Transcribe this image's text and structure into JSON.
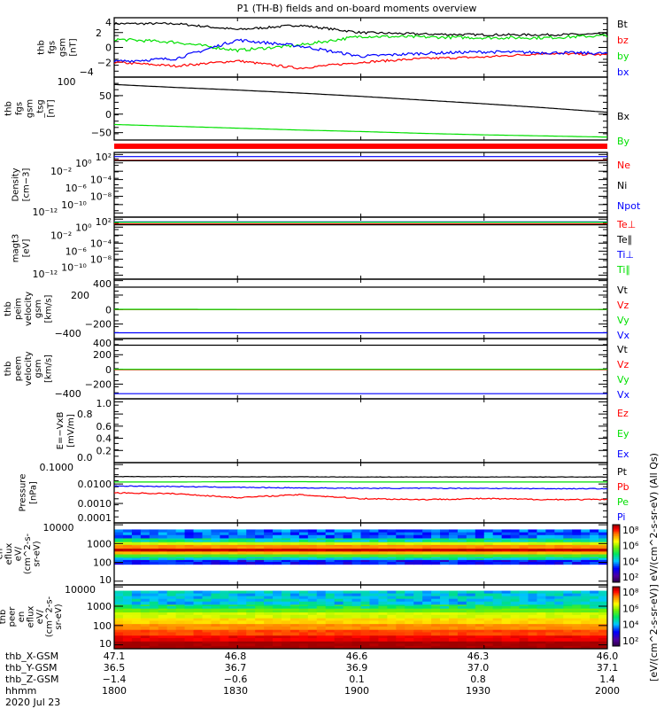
{
  "title": "P1 (TH-B) fields and on-board moments overview",
  "chart_data": {
    "type": "line",
    "time_axis": {
      "start_hhmm": "1800",
      "end_hhmm": "2000",
      "minutes": 120,
      "sample_minutes": [
        0,
        15,
        30,
        45,
        60,
        75,
        90,
        105,
        120
      ]
    },
    "panels": [
      {
        "id": "fgs_gsm",
        "ylabel": [
          "thb",
          "fgs",
          "gsm",
          "[nT]"
        ],
        "scale": "linear",
        "ylim": [
          -4,
          4
        ],
        "ticks": [
          {
            "v": 4,
            "label": "4"
          },
          {
            "v": 2,
            "label": "2"
          },
          {
            "v": 0,
            "label": "0"
          },
          {
            "v": -2,
            "label": "−2"
          },
          {
            "v": -4,
            "label": "−4"
          }
        ],
        "series": [
          {
            "name": "Bt",
            "color": "#000000",
            "values": [
              3.2,
              3.2,
              2.4,
              3.0,
              2.0,
              1.8,
              1.7,
              1.7,
              1.8
            ],
            "noise": 0.15
          },
          {
            "name": "bz",
            "color": "#ff0000",
            "values": [
              -2.0,
              -2.5,
              -1.8,
              -2.8,
              -2.0,
              -1.5,
              -1.3,
              -0.8,
              -1.0
            ],
            "noise": 0.15
          },
          {
            "name": "by",
            "color": "#00e000",
            "values": [
              1.1,
              0.7,
              -0.4,
              0.3,
              1.5,
              1.4,
              1.3,
              1.3,
              1.6
            ],
            "noise": 0.2
          },
          {
            "name": "bx",
            "color": "#0000ff",
            "values": [
              -1.9,
              -1.5,
              1.0,
              0.2,
              -1.2,
              -0.8,
              -0.6,
              -0.7,
              -0.8
            ],
            "noise": 0.2
          }
        ]
      },
      {
        "id": "fgs_gsm_tsg",
        "ylabel": [
          "thb",
          "fgs",
          "gsm",
          "_tsg",
          "[nT]"
        ],
        "scale": "linear",
        "ylim": [
          -70,
          100
        ],
        "ticks": [
          {
            "v": 100,
            "label": "100"
          },
          {
            "v": 50,
            "label": "50"
          },
          {
            "v": 0,
            "label": "0"
          },
          {
            "v": -50,
            "label": "−50"
          }
        ],
        "series": [
          {
            "name": "Bx",
            "color": "#000000",
            "values": [
              80,
              72,
              65,
              57,
              48,
              38,
              28,
              17,
              5
            ],
            "noise": 0
          },
          {
            "name": "By",
            "color": "#00e000",
            "values": [
              -28,
              -33,
              -38,
              -43,
              -47,
              -52,
              -56,
              -59,
              -62
            ],
            "noise": 0
          }
        ]
      },
      {
        "id": "density",
        "ylabel": [
          "Density",
          "[cm−3]"
        ],
        "scale": "log",
        "ylim": [
          -13,
          2.5
        ],
        "ticks": [
          {
            "v": 2,
            "label": "10²"
          },
          {
            "v": 0,
            "label": "10⁰"
          },
          {
            "v": -2,
            "label": "10⁻²"
          },
          {
            "v": -4,
            "label": "10⁻⁴"
          },
          {
            "v": -6,
            "label": "10⁻⁶"
          },
          {
            "v": -8,
            "label": "10⁻⁸"
          },
          {
            "v": -10,
            "label": "10⁻¹⁰"
          },
          {
            "v": -12,
            "label": "10⁻¹²"
          }
        ],
        "series": [
          {
            "name": "Ne",
            "color": "#ff0000",
            "values": [
              0.6,
              0.6,
              0.6,
              0.6,
              0.6,
              0.6,
              0.6,
              0.6,
              0.6
            ],
            "noise": 0
          },
          {
            "name": "Ni",
            "color": "#000000",
            "values": [
              0.5,
              0.5,
              0.5,
              0.5,
              0.5,
              0.5,
              0.5,
              0.5,
              0.5
            ],
            "noise": 0
          },
          {
            "name": "Npot",
            "color": "#0000ff",
            "values": [
              1.5,
              1.5,
              1.5,
              1.5,
              1.5,
              1.5,
              1.5,
              1.5,
              1.5
            ],
            "noise": 0
          }
        ]
      },
      {
        "id": "magt3",
        "ylabel": [
          "magt3",
          "[eV]"
        ],
        "scale": "log",
        "ylim": [
          -13,
          2.5
        ],
        "ticks": [
          {
            "v": 2,
            "label": "10²"
          },
          {
            "v": 0,
            "label": "10⁰"
          },
          {
            "v": -2,
            "label": "10⁻²"
          },
          {
            "v": -4,
            "label": "10⁻⁴"
          },
          {
            "v": -6,
            "label": "10⁻⁶"
          },
          {
            "v": -8,
            "label": "10⁻⁸"
          },
          {
            "v": -10,
            "label": "10⁻¹⁰"
          },
          {
            "v": -12,
            "label": "10⁻¹²"
          }
        ],
        "series": [
          {
            "name": "Te⊥",
            "color": "#ff0000",
            "values": [
              0.8,
              0.8,
              0.8,
              0.8,
              0.8,
              0.8,
              0.8,
              0.8,
              0.8
            ],
            "noise": 0
          },
          {
            "name": "Te∥",
            "color": "#000000",
            "values": [
              0.6,
              0.6,
              0.6,
              0.6,
              0.6,
              0.6,
              0.6,
              0.6,
              0.6
            ],
            "noise": 0
          },
          {
            "name": "Ti⊥",
            "color": "#0000ff",
            "values": [
              1.3,
              1.3,
              1.3,
              1.3,
              1.3,
              1.3,
              1.3,
              1.3,
              1.3
            ],
            "noise": 0
          },
          {
            "name": "Ti∥",
            "color": "#00e000",
            "values": [
              1.2,
              1.2,
              1.2,
              1.2,
              1.2,
              1.2,
              1.2,
              1.2,
              1.2
            ],
            "noise": 0
          }
        ]
      },
      {
        "id": "peim_velocity",
        "ylabel": [
          "thb",
          "peim",
          "velocity",
          "gsm",
          "[km/s]"
        ],
        "scale": "linear",
        "ylim": [
          -400,
          420
        ],
        "ticks": [
          {
            "v": 400,
            "label": "400"
          },
          {
            "v": 200,
            "label": "200"
          },
          {
            "v": 0,
            "label": "0"
          },
          {
            "v": -200,
            "label": "−200"
          },
          {
            "v": -400,
            "label": "−400"
          }
        ],
        "series": [
          {
            "name": "Vt",
            "color": "#000000",
            "values": [
              310,
              310,
              310,
              310,
              310,
              310,
              310,
              310,
              310
            ],
            "noise": 0
          },
          {
            "name": "Vz",
            "color": "#ff0000",
            "values": [
              0,
              0,
              0,
              0,
              0,
              0,
              0,
              0,
              0
            ],
            "noise": 0
          },
          {
            "name": "Vy",
            "color": "#00e000",
            "values": [
              4,
              4,
              2,
              2,
              2,
              2,
              2,
              2,
              2
            ],
            "noise": 0
          },
          {
            "name": "Vx",
            "color": "#0000ff",
            "values": [
              -320,
              -320,
              -320,
              -320,
              -320,
              -320,
              -320,
              -320,
              -320
            ],
            "noise": 0
          }
        ]
      },
      {
        "id": "peem_velocity",
        "ylabel": [
          "thb",
          "peem",
          "velocity",
          "gsm",
          "[km/s]"
        ],
        "scale": "linear",
        "ylim": [
          -400,
          420
        ],
        "ticks": [
          {
            "v": 400,
            "label": "400"
          },
          {
            "v": 200,
            "label": "200"
          },
          {
            "v": 0,
            "label": "0"
          },
          {
            "v": -200,
            "label": "−200"
          },
          {
            "v": -400,
            "label": "−400"
          }
        ],
        "series": [
          {
            "name": "Vt",
            "color": "#000000",
            "values": [
              330,
              330,
              330,
              330,
              330,
              330,
              330,
              330,
              330
            ],
            "noise": 0
          },
          {
            "name": "Vz",
            "color": "#ff0000",
            "values": [
              -5,
              -5,
              -5,
              -5,
              -5,
              -5,
              -5,
              -5,
              -5
            ],
            "noise": 0
          },
          {
            "name": "Vy",
            "color": "#00e000",
            "values": [
              2,
              2,
              2,
              2,
              2,
              2,
              2,
              2,
              2
            ],
            "noise": 0
          },
          {
            "name": "Vx",
            "color": "#0000ff",
            "values": [
              -330,
              -330,
              -330,
              -330,
              -330,
              -330,
              -330,
              -330,
              -330
            ],
            "noise": 0
          }
        ]
      },
      {
        "id": "efield",
        "ylabel": [
          "E=−VxB",
          "[mV/m]"
        ],
        "scale": "linear",
        "ylim": [
          0,
          1.05
        ],
        "ticks": [
          {
            "v": 1,
            "label": "1.0"
          },
          {
            "v": 0.8,
            "label": "0.8"
          },
          {
            "v": 0.6,
            "label": "0.6"
          },
          {
            "v": 0.4,
            "label": "0.4"
          },
          {
            "v": 0.2,
            "label": "0.2"
          },
          {
            "v": 0,
            "label": "0.0"
          }
        ],
        "series": [
          {
            "name": "Ez",
            "color": "#ff0000",
            "values": [],
            "noise": 0
          },
          {
            "name": "Ey",
            "color": "#00e000",
            "values": [],
            "noise": 0
          },
          {
            "name": "Ex",
            "color": "#0000ff",
            "values": [],
            "noise": 0
          }
        ]
      },
      {
        "id": "pressure",
        "ylabel": [
          "Pressure",
          "[nPa]"
        ],
        "scale": "log",
        "ylim": [
          -4,
          -0.9
        ],
        "ticks": [
          {
            "v": -1,
            "label": "0.1000"
          },
          {
            "v": -2,
            "label": "0.0100"
          },
          {
            "v": -3,
            "label": "0.0010"
          },
          {
            "v": -4,
            "label": "0.0001"
          }
        ],
        "series": [
          {
            "name": "Pt",
            "color": "#000000",
            "values": [
              -1.62,
              -1.62,
              -1.63,
              -1.63,
              -1.64,
              -1.64,
              -1.64,
              -1.64,
              -1.64
            ],
            "noise": 0.01
          },
          {
            "name": "Pb",
            "color": "#ff0000",
            "values": [
              -2.45,
              -2.5,
              -2.7,
              -2.55,
              -2.75,
              -2.8,
              -2.75,
              -2.8,
              -2.8
            ],
            "noise": 0.03
          },
          {
            "name": "Pe",
            "color": "#00e000",
            "values": [
              -1.9,
              -1.9,
              -1.88,
              -1.88,
              -1.9,
              -1.9,
              -1.9,
              -1.9,
              -1.9
            ],
            "noise": 0
          },
          {
            "name": "Pi",
            "color": "#0000ff",
            "values": [
              -2.1,
              -2.13,
              -2.17,
              -2.2,
              -2.22,
              -2.22,
              -2.22,
              -2.24,
              -2.24
            ],
            "noise": 0.02
          }
        ]
      }
    ],
    "spectrograms": [
      {
        "id": "peir",
        "ylabel": [
          "thb",
          "peir",
          "en",
          "eflux",
          "eV/",
          "(cm^2-s-",
          "sr-eV)"
        ],
        "ylim_log10": [
          0.8,
          4.1
        ],
        "ticks": [
          {
            "v": 4,
            "label": "10000"
          },
          {
            "v": 3,
            "label": "1000"
          },
          {
            "v": 2,
            "label": "100"
          },
          {
            "v": 1,
            "label": "10"
          }
        ],
        "bands": [
          {
            "lo": 1.9,
            "hi": 2.15,
            "level": 2.8
          },
          {
            "lo": 2.15,
            "hi": 2.3,
            "level": 4
          },
          {
            "lo": 2.3,
            "hi": 2.45,
            "level": 5
          },
          {
            "lo": 2.45,
            "hi": 2.6,
            "level": 6.5
          },
          {
            "lo": 2.6,
            "hi": 2.75,
            "level": 7.8
          },
          {
            "lo": 2.75,
            "hi": 2.95,
            "level": 6.8
          },
          {
            "lo": 2.95,
            "hi": 3.1,
            "level": 5.8
          },
          {
            "lo": 3.1,
            "hi": 3.3,
            "level": 4.2
          },
          {
            "lo": 3.3,
            "hi": 3.75,
            "level": 3.2
          }
        ]
      },
      {
        "id": "peer",
        "ylabel": [
          "thb",
          "peer",
          "en",
          "eflux",
          "eV/",
          "(cm^2-s-",
          "sr-eV)"
        ],
        "ylim_log10": [
          0.8,
          4.1
        ],
        "ticks": [
          {
            "v": 4,
            "label": "10000"
          },
          {
            "v": 3,
            "label": "1000"
          },
          {
            "v": 2,
            "label": "100"
          },
          {
            "v": 1,
            "label": "10"
          }
        ],
        "bands": [
          {
            "lo": 0.8,
            "hi": 1.2,
            "level": 8.0
          },
          {
            "lo": 1.2,
            "hi": 1.5,
            "level": 7.6
          },
          {
            "lo": 1.5,
            "hi": 1.8,
            "level": 7.2
          },
          {
            "lo": 1.8,
            "hi": 2.1,
            "level": 6.8
          },
          {
            "lo": 2.1,
            "hi": 2.4,
            "level": 6.3
          },
          {
            "lo": 2.4,
            "hi": 2.7,
            "level": 5.8
          },
          {
            "lo": 2.7,
            "hi": 2.9,
            "level": 5.2
          },
          {
            "lo": 2.9,
            "hi": 3.1,
            "level": 4.5
          },
          {
            "lo": 3.1,
            "hi": 3.8,
            "level": 3.8
          }
        ]
      }
    ],
    "colorbar": {
      "label": "[eV/(cm^2-s-sr-eV)]  eV/(cm^2-s-sr-eV) (All Qs)",
      "ticks": [
        "10⁸",
        "10⁶",
        "10⁴",
        "10²"
      ],
      "range_log10": [
        1,
        8
      ]
    }
  },
  "ephemeris": {
    "rows": [
      {
        "label": "thb_X-GSM",
        "values": [
          "47.1",
          "46.8",
          "46.6",
          "46.3",
          "46.0"
        ]
      },
      {
        "label": "thb_Y-GSM",
        "values": [
          "36.5",
          "36.7",
          "36.9",
          "37.0",
          "37.1"
        ]
      },
      {
        "label": "thb_Z-GSM",
        "values": [
          "−1.4",
          "−0.6",
          "0.1",
          "0.8",
          "1.4"
        ]
      },
      {
        "label": "hhmm",
        "values": [
          "1800",
          "1830",
          "1900",
          "1930",
          "2000"
        ]
      }
    ],
    "date": "2020 Jul 23"
  }
}
